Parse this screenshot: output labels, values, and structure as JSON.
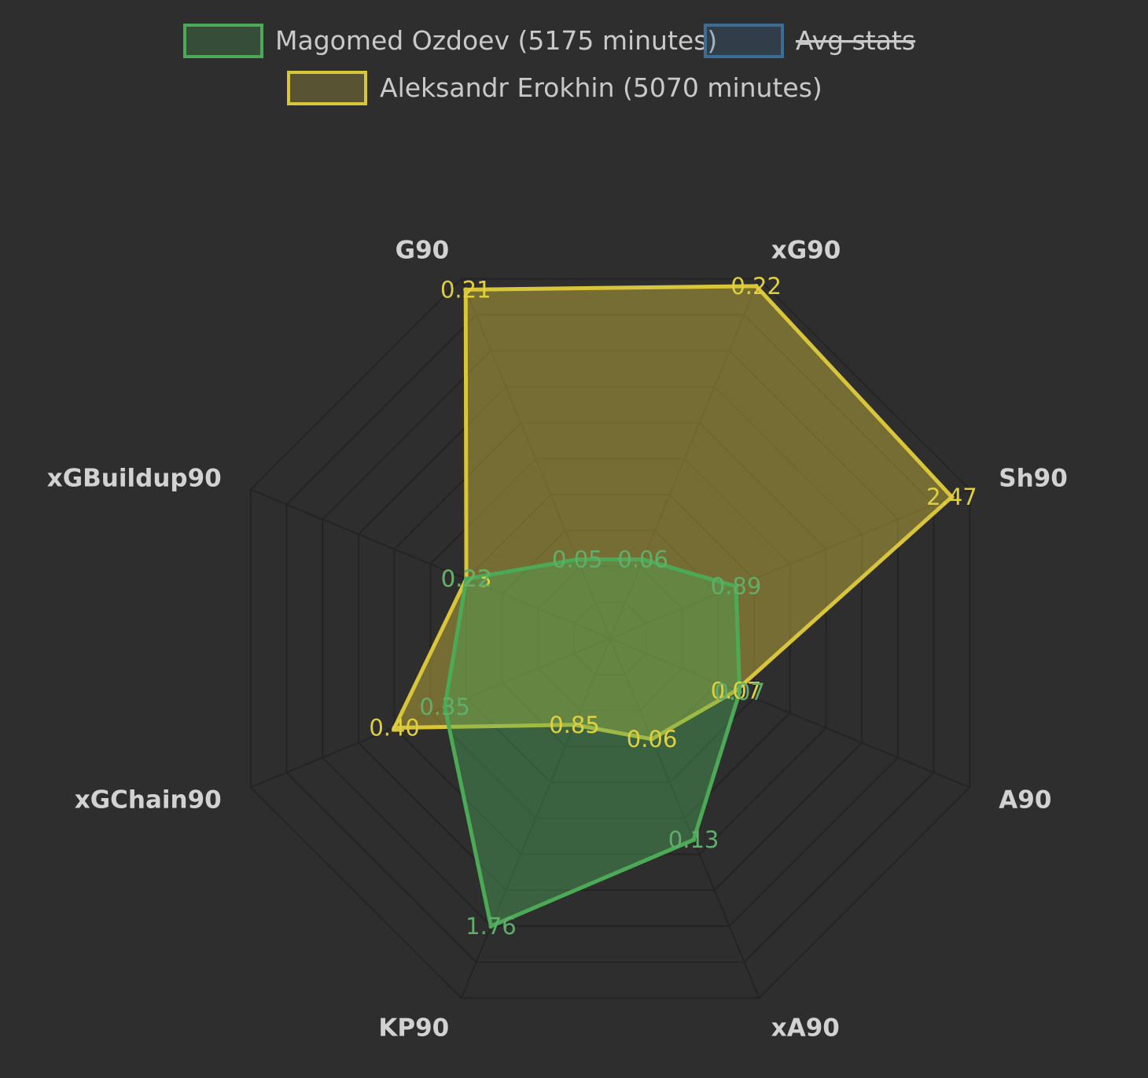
{
  "colors": {
    "background": "#2e2e2f",
    "grid": "#242425",
    "green": "#4caa57",
    "yellow": "#d9c53a",
    "blue": "#3c6d94"
  },
  "legend": [
    {
      "label": "Magomed Ozdoev (5175 minutes)",
      "color": "green",
      "hidden": false
    },
    {
      "label": "Avg stats",
      "color": "blue",
      "hidden": true
    },
    {
      "label": "Aleksandr Erokhin (5070 minutes)",
      "color": "yellow",
      "hidden": false
    }
  ],
  "chart_data": {
    "type": "radar",
    "axes": [
      "G90",
      "xG90",
      "Sh90",
      "A90",
      "xA90",
      "KP90",
      "xGChain90",
      "xGBuildup90"
    ],
    "series": [
      {
        "name": "Aleksandr Erokhin (5070 minutes)",
        "color": "yellow",
        "values": [
          0.21,
          0.22,
          2.47,
          0.07,
          0.06,
          0.85,
          0.4,
          0.23
        ],
        "labels": [
          "0.21",
          "0.22",
          "2.47",
          "0.07",
          "0.06",
          "0.85",
          "0.40",
          "0.23"
        ],
        "scaled": [
          0.97,
          0.98,
          0.95,
          0.35,
          0.28,
          0.24,
          0.6,
          0.4
        ]
      },
      {
        "name": "Magomed Ozdoev (5175 minutes)",
        "color": "green",
        "values": [
          0.05,
          0.06,
          0.89,
          0.07,
          0.13,
          1.76,
          0.35,
          0.22
        ],
        "labels": [
          "0.05",
          "0.06",
          "0.89",
          "0.07",
          "0.13",
          "1.76",
          "0.35",
          "0.22"
        ],
        "scaled": [
          0.22,
          0.22,
          0.35,
          0.36,
          0.56,
          0.8,
          0.46,
          0.4
        ]
      }
    ]
  }
}
